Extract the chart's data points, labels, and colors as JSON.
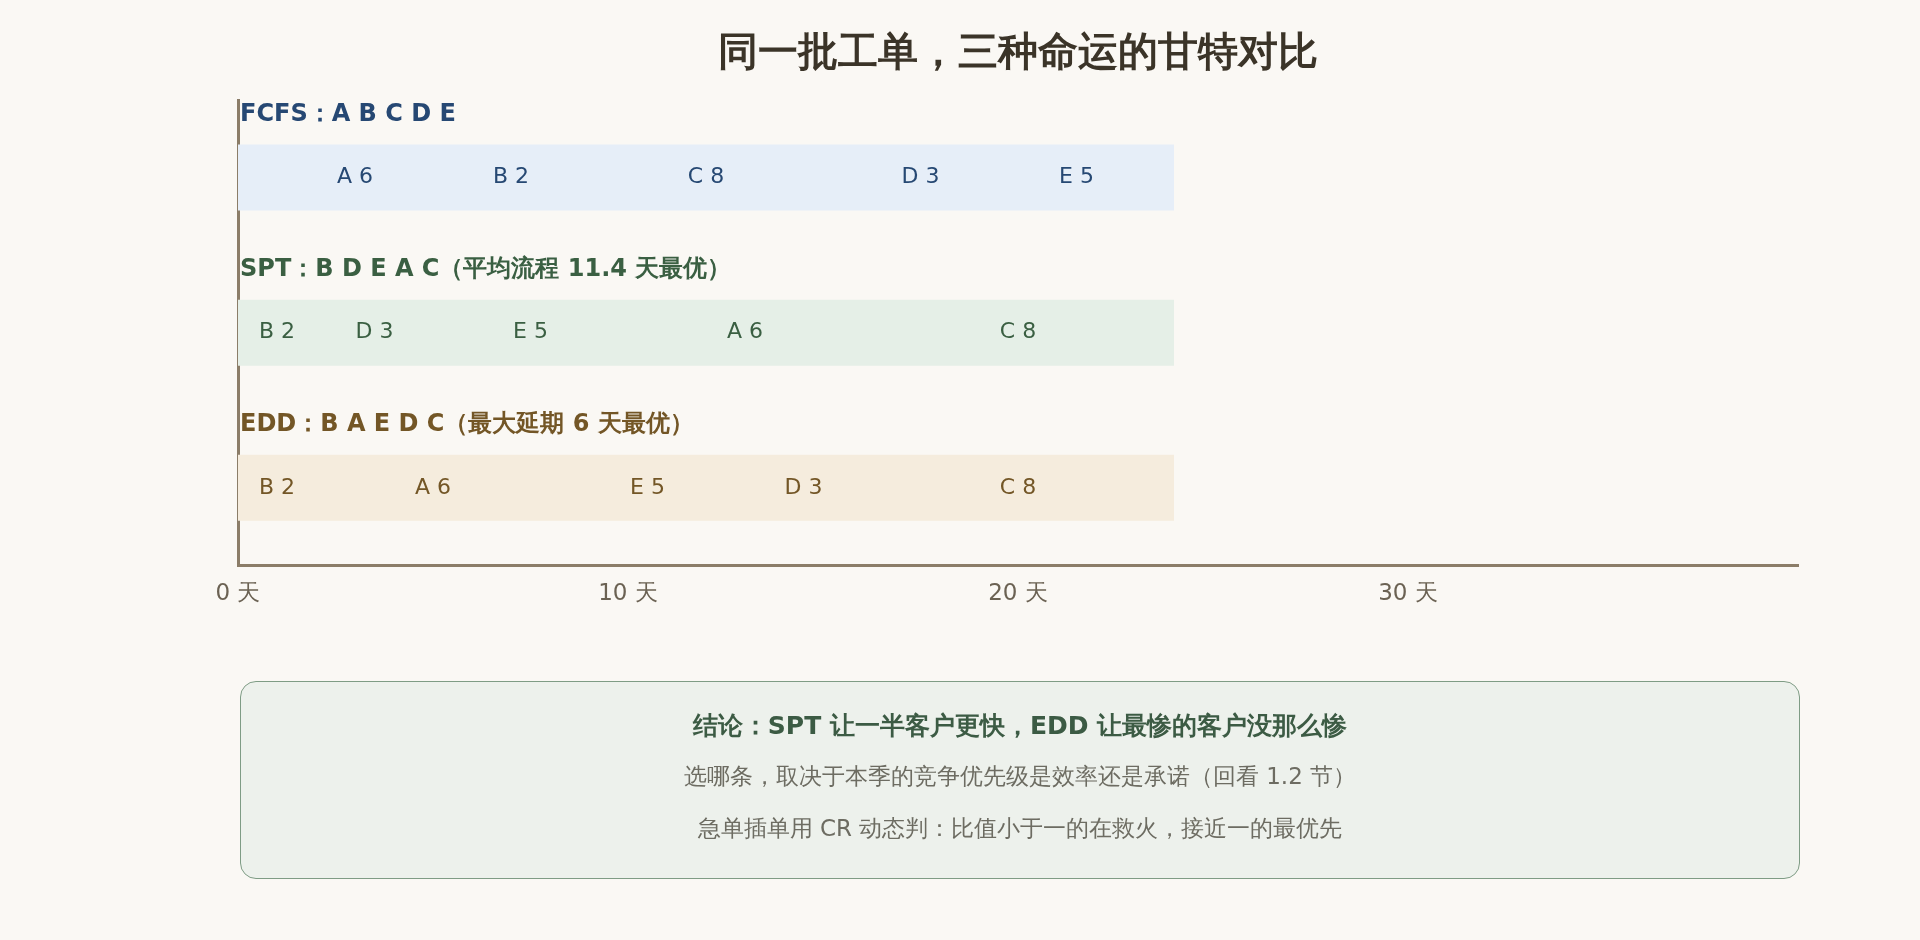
{
  "chart_data": {
    "type": "bar",
    "orientation": "horizontal",
    "stacked": true,
    "title": "同一批工单，三种命运的甘特对比",
    "categories": [
      "FCFS：A B C D E",
      "SPT：B D E A C（平均流程 11.4 天最优）",
      "EDD：B A E D C（最大延期 6 天最优）"
    ],
    "series": [
      {
        "colors": [
          "#e6eef8",
          "#e5efe7",
          "#f5ecdd"
        ],
        "values": [
          6,
          2,
          2
        ],
        "value_labels": [
          "A 6",
          "B 2",
          "B 2"
        ]
      },
      {
        "colors": [
          "#e6eef8",
          "#e5efe7",
          "#f5ecdd"
        ],
        "values": [
          2,
          3,
          6
        ],
        "value_labels": [
          "B 2",
          "D 3",
          "A 6"
        ]
      },
      {
        "colors": [
          "#e6eef8",
          "#e5efe7",
          "#f5ecdd"
        ],
        "values": [
          8,
          5,
          5
        ],
        "value_labels": [
          "C 8",
          "E 5",
          "E 5"
        ]
      },
      {
        "colors": [
          "#e6eef8",
          "#e5efe7",
          "#f5ecdd"
        ],
        "values": [
          3,
          6,
          3
        ],
        "value_labels": [
          "D 3",
          "A 6",
          "D 3"
        ]
      },
      {
        "colors": [
          "#e6eef8",
          "#e5efe7",
          "#f5ecdd"
        ],
        "values": [
          5,
          8,
          8
        ],
        "value_labels": [
          "E 5",
          "C 8",
          "C 8"
        ]
      }
    ],
    "xlim": [
      0,
      40
    ],
    "xticks": [
      {
        "value": 0,
        "label": "0 天"
      },
      {
        "value": 10,
        "label": "10 天"
      },
      {
        "value": 20,
        "label": "20 天"
      },
      {
        "value": 30,
        "label": "30 天"
      }
    ],
    "grid": false,
    "legend": false,
    "annotations": [
      "结论：SPT 让一半客户更快，EDD 让最惨的客户没那么惨",
      "选哪条，取决于本季的竞争优先级是效率还是承诺（回看 1.2 节）",
      "急单插单用 CR 动态判：比值小于一的在救火，接近一的最优先"
    ]
  }
}
